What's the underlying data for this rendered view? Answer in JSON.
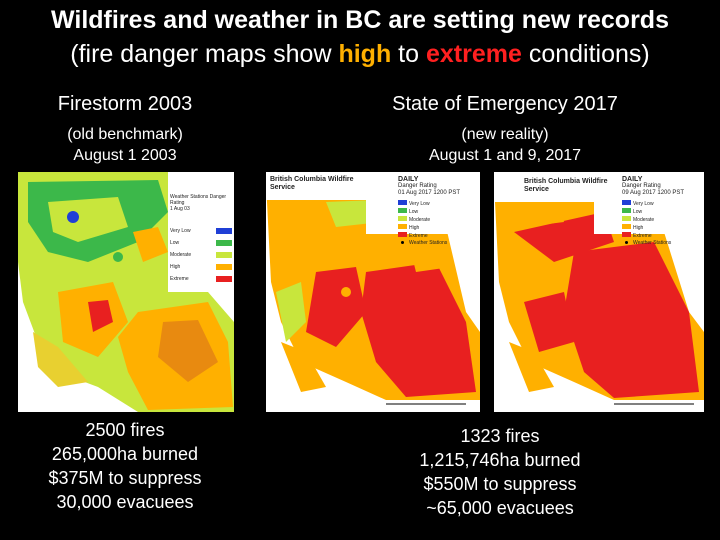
{
  "title": {
    "line1": "Wildfires and weather in BC are setting new records",
    "line2_before": "(fire danger maps show ",
    "line2_high": "high",
    "line2_mid": " to ",
    "line2_extreme": "extreme",
    "line2_after": " conditions)"
  },
  "left": {
    "heading": "Firestorm 2003",
    "sub1": "(old benchmark)",
    "sub2": "August 1 2003",
    "map_legend": {
      "title": "Weather Stations Danger Rating",
      "date": "1 Aug 03",
      "levels": [
        "Very Low",
        "Low",
        "Moderate",
        "High",
        "Extreme"
      ]
    },
    "stats": [
      "2500 fires",
      "265,000ha burned",
      "$375M to suppress",
      "30,000 evacuees"
    ]
  },
  "right": {
    "heading": "State of Emergency 2017",
    "sub1": "(new reality)",
    "sub2": "August 1 and 9, 2017",
    "stats": [
      "1323 fires",
      "1,215,746ha burned",
      "$550M to suppress",
      "~65,000 evacuees"
    ]
  },
  "map1": {
    "org": "British Columbia Wildfire Service",
    "daily": "DAILY",
    "rating": "Danger Rating",
    "date": "01 Aug 2017 1200 PST",
    "levels": [
      "Very Low",
      "Low",
      "Moderate",
      "High",
      "Extreme",
      "Weather Stations"
    ]
  },
  "map2": {
    "org": "British Columbia Wildfire Service",
    "daily": "DAILY",
    "rating": "Danger Rating",
    "date": "09 Aug 2017 1200 PST",
    "levels": [
      "Very Low",
      "Low",
      "Moderate",
      "High",
      "Extreme",
      "Weather Stations"
    ]
  },
  "colors": {
    "very_low": "#1f3fd6",
    "low": "#3cb84a",
    "moderate": "#c8e63c",
    "high": "#ffb000",
    "extreme": "#e82020",
    "highlight_high": "#ffb000",
    "highlight_extreme": "#ff2020"
  }
}
